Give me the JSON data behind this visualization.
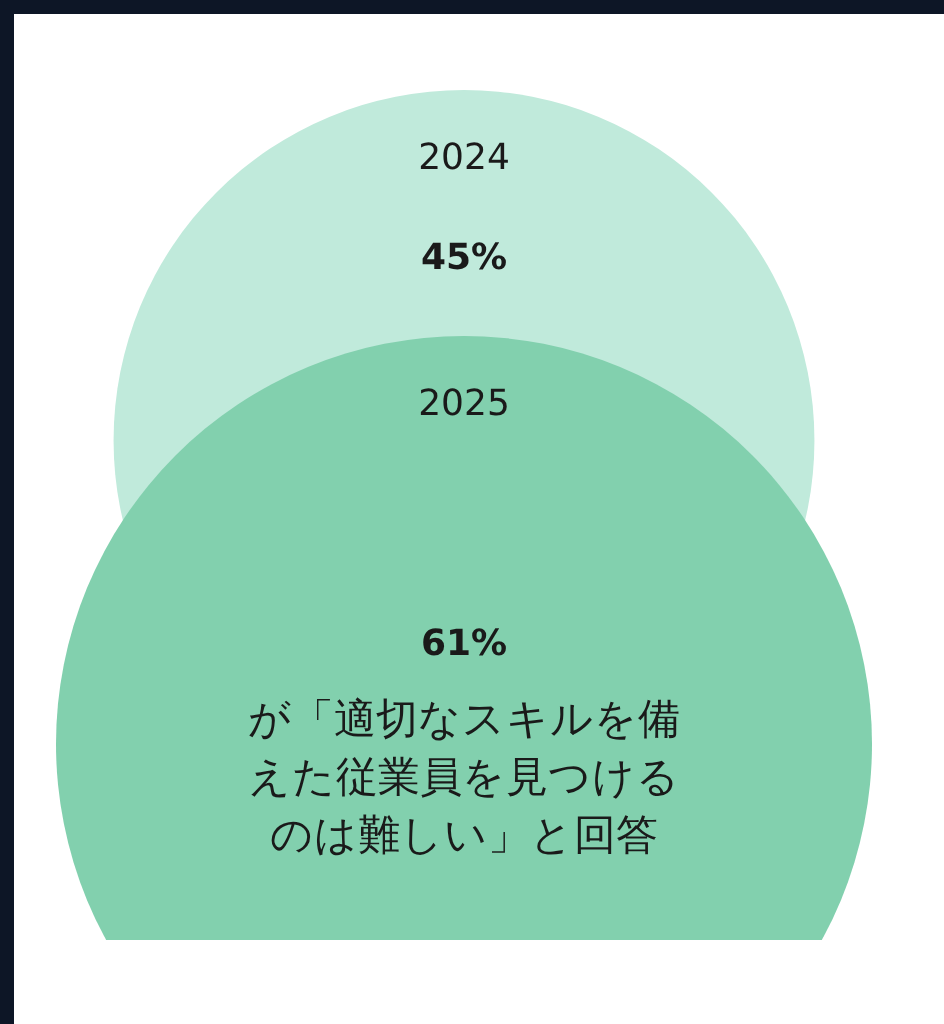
{
  "chart_data": {
    "type": "other",
    "categories": [
      "2024",
      "2025"
    ],
    "values": [
      45,
      61
    ],
    "value_labels": [
      "45%",
      "61%"
    ],
    "colors": [
      "#c0eadb",
      "#82d0ae"
    ],
    "annotations": [
      "が「適切なスキルを備えた従業員を見つけるのは難しい」と回答"
    ]
  }
}
